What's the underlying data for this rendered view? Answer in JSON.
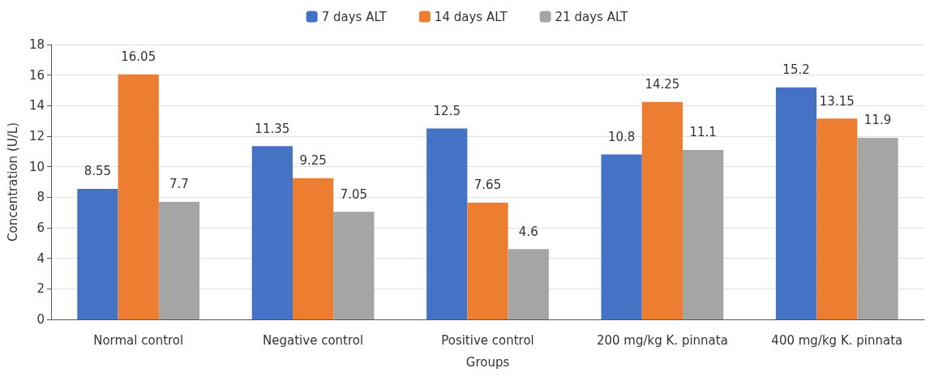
{
  "chart_data": {
    "type": "bar",
    "xlabel": "Groups",
    "ylabel": "Concentration (U/L)",
    "categories": [
      "Normal control",
      "Negative control",
      "Positive control",
      "200 mg/kg K. pinnata",
      "400 mg/kg K. pinnata"
    ],
    "series": [
      {
        "name": "7 days ALT",
        "color": "#4472c4",
        "values": [
          8.55,
          11.35,
          12.5,
          10.8,
          15.2
        ]
      },
      {
        "name": "14 days ALT",
        "color": "#ed7d31",
        "values": [
          16.05,
          9.25,
          7.65,
          14.25,
          13.15
        ]
      },
      {
        "name": "21 days ALT",
        "color": "#a5a5a5",
        "values": [
          7.7,
          7.05,
          4.6,
          11.1,
          11.9
        ]
      }
    ],
    "ylim": [
      0,
      18
    ],
    "yticks": [
      0,
      2,
      4,
      6,
      8,
      10,
      12,
      14,
      16,
      18
    ],
    "grid": "y",
    "legend": "top",
    "data_labels": true
  }
}
